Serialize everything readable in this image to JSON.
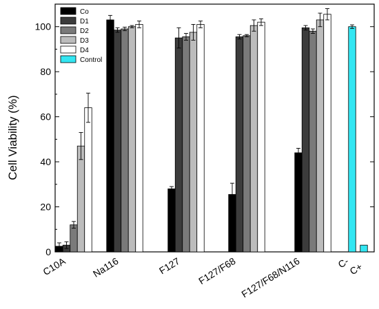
{
  "chart_data": {
    "type": "bar",
    "ylabel": "Cell Viability (%)",
    "xlabel": "",
    "ylim": [
      0,
      110
    ],
    "yticks": [
      0,
      20,
      40,
      60,
      80,
      100
    ],
    "grid": false,
    "legend_position": "top-left",
    "groups": [
      {
        "label": "C10A",
        "bars": [
          {
            "series": "Co",
            "value": 2.5,
            "error": 1.5
          },
          {
            "series": "D1",
            "value": 3.0,
            "error": 1.5
          },
          {
            "series": "D2",
            "value": 12.0,
            "error": 1.5
          },
          {
            "series": "D3",
            "value": 47.0,
            "error": 6.0
          },
          {
            "series": "D4",
            "value": 64.0,
            "error": 6.5
          }
        ]
      },
      {
        "label": "Na116",
        "bars": [
          {
            "series": "Co",
            "value": 103.0,
            "error": 2.0
          },
          {
            "series": "D1",
            "value": 98.5,
            "error": 1.0
          },
          {
            "series": "D2",
            "value": 99.0,
            "error": 0.8
          },
          {
            "series": "D3",
            "value": 100.0,
            "error": 0.5
          },
          {
            "series": "D4",
            "value": 101.0,
            "error": 1.5
          }
        ]
      },
      {
        "label": "F127",
        "bars": [
          {
            "series": "Co",
            "value": 28.0,
            "error": 1.0
          },
          {
            "series": "D1",
            "value": 95.0,
            "error": 4.5
          },
          {
            "series": "D2",
            "value": 95.5,
            "error": 1.5
          },
          {
            "series": "D3",
            "value": 97.5,
            "error": 3.5
          },
          {
            "series": "D4",
            "value": 101.0,
            "error": 1.5
          }
        ]
      },
      {
        "label": "F127/F68",
        "bars": [
          {
            "series": "Co",
            "value": 25.5,
            "error": 5.0
          },
          {
            "series": "D1",
            "value": 95.5,
            "error": 1.0
          },
          {
            "series": "D2",
            "value": 96.0,
            "error": 0.5
          },
          {
            "series": "D3",
            "value": 100.5,
            "error": 2.5
          },
          {
            "series": "D4",
            "value": 102.0,
            "error": 1.5
          }
        ]
      },
      {
        "label": "F127/F68/N116",
        "bars": [
          {
            "series": "Co",
            "value": 44.0,
            "error": 2.0
          },
          {
            "series": "D1",
            "value": 99.5,
            "error": 1.0
          },
          {
            "series": "D2",
            "value": 98.0,
            "error": 1.0
          },
          {
            "series": "D3",
            "value": 103.0,
            "error": 3.0
          },
          {
            "series": "D4",
            "value": 105.5,
            "error": 2.5
          }
        ]
      },
      {
        "label": "C-",
        "bars": [
          {
            "series": "Control",
            "value": 100.0,
            "error": 0.8
          }
        ]
      },
      {
        "label": "C+",
        "bars": [
          {
            "series": "Control",
            "value": 3.0,
            "error": 0
          }
        ]
      }
    ],
    "series": [
      {
        "name": "Co",
        "color": "#000000"
      },
      {
        "name": "D1",
        "color": "#3c3c3c"
      },
      {
        "name": "D2",
        "color": "#7a7a7a"
      },
      {
        "name": "D3",
        "color": "#bcbcbc"
      },
      {
        "name": "D4",
        "color": "#ffffff"
      },
      {
        "name": "Control",
        "color": "#33e6f2"
      }
    ]
  }
}
